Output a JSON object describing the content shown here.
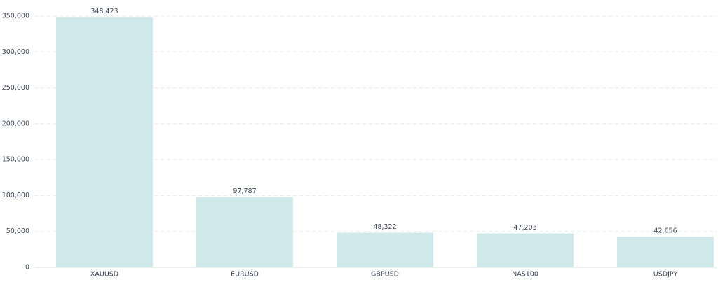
{
  "chart_data": {
    "type": "bar",
    "categories": [
      "XAUUSD",
      "EURUSD",
      "GBPUSD",
      "NAS100",
      "USDJPY"
    ],
    "values": [
      348423,
      97787,
      48322,
      47203,
      42656
    ],
    "value_labels": [
      "348,423",
      "97,787",
      "48,322",
      "47,203",
      "42,656"
    ],
    "color": "#cfe8e9",
    "ylim": [
      0,
      350000
    ],
    "yticks": [
      0,
      {
        "value": 50000,
        "label": "50,000"
      },
      {
        "value": 100000,
        "label": "100,000"
      },
      {
        "value": 150000,
        "label": "150,000"
      },
      {
        "value": 200000,
        "label": "200,000"
      },
      {
        "value": 250000,
        "label": "250,000"
      },
      {
        "value": 300000,
        "label": "300,000"
      },
      {
        "value": 350000,
        "label": "350,000"
      }
    ],
    "grid": true
  }
}
